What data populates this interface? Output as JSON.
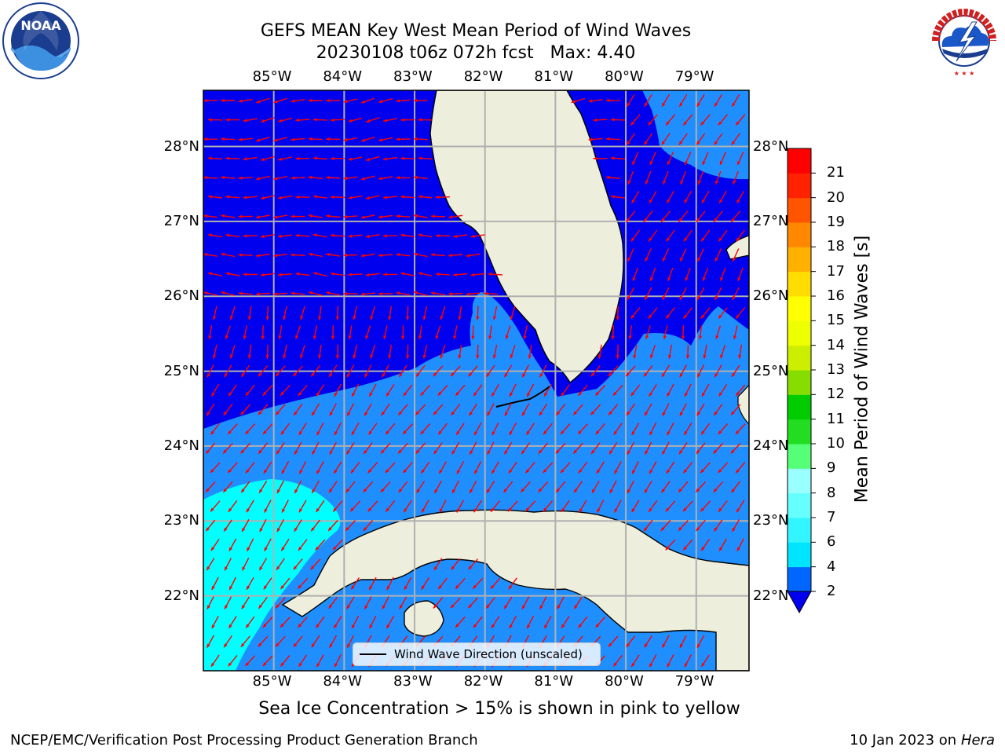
{
  "title_line1": "GEFS MEAN Key West Mean Period of Wind Waves",
  "title_line2": "20230108 t06z 072h fcst   Max: 4.40",
  "lon_labels": [
    "85°W",
    "84°W",
    "83°W",
    "82°W",
    "81°W",
    "80°W",
    "79°W"
  ],
  "lat_labels": [
    "28°N",
    "27°N",
    "26°N",
    "25°N",
    "24°N",
    "23°N",
    "22°N"
  ],
  "legend_text": "Wind Wave Direction (unscaled)",
  "sea_ice_note": "Sea Ice Concentration > 15% is shown in pink to yellow",
  "footer_left": "NCEP/EMC/Verification Post Processing Product Generation Branch",
  "footer_date": "10 Jan 2023 on",
  "footer_host": "Hera",
  "colorbar": {
    "label": "Mean Period of Wind Waves [s]",
    "ticks": [
      "2",
      "4",
      "6",
      "7",
      "8",
      "9",
      "10",
      "11",
      "12",
      "13",
      "14",
      "15",
      "16",
      "17",
      "18",
      "19",
      "20",
      "21"
    ],
    "colors": [
      "#0066ff",
      "#00e5ff",
      "#33f5ff",
      "#66ffff",
      "#99ffff",
      "#55ff77",
      "#22dd22",
      "#00cc00",
      "#88dd00",
      "#ccee00",
      "#eeff00",
      "#ffff00",
      "#ffdd00",
      "#ffb000",
      "#ff8800",
      "#ff5500",
      "#ff2200",
      "#ff0000"
    ],
    "under_color": "#0000ee"
  },
  "map": {
    "extent_lon": [
      -86.0,
      -78.25
    ],
    "extent_lat": [
      21.0,
      28.75
    ],
    "colors": {
      "deep": "#0000ee",
      "mid": "#1f8fff",
      "cyan": "#00ffff",
      "land": "#eeeedd",
      "arrow": "#ff0000"
    }
  },
  "logos": {
    "noaa": "NOAA",
    "nws": "NATIONAL WEATHER SERVICE"
  }
}
